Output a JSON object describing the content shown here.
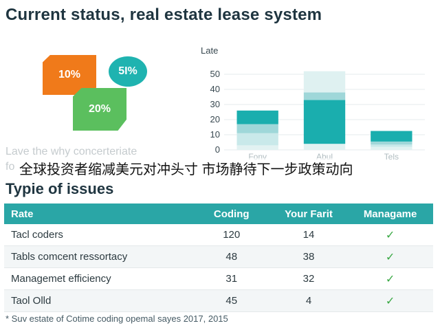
{
  "title": "Current status, real estate lease system",
  "shapes": [
    {
      "label": "10%",
      "color": "#f07a1a"
    },
    {
      "label": "5I%",
      "color": "#1fb3b0"
    },
    {
      "label": "20%",
      "color": "#5bbf5e"
    }
  ],
  "faded_text": "Lave the why concerteriate",
  "faded_text2": "fo",
  "overlay_caption": "全球投资者缩减美元对冲头寸 市场静待下一步政策动向",
  "chart_data": {
    "type": "bar",
    "stacked": true,
    "ylabel": "Late",
    "ylim": [
      0,
      60
    ],
    "yticks": [
      0,
      10,
      20,
      30,
      40,
      50
    ],
    "categories": [
      "Fonv",
      "Abul",
      "Tels"
    ],
    "series": [
      {
        "color": "#e2f2f2",
        "values": [
          3,
          4,
          2
        ]
      },
      {
        "color": "#c9e9ea",
        "values": [
          8,
          0,
          1.5
        ]
      },
      {
        "color": "#9fd7d9",
        "values": [
          6,
          0,
          2
        ]
      },
      {
        "color": "#1aaeae",
        "values": [
          9,
          29,
          7
        ]
      },
      {
        "color": "#9fd7d9",
        "values": [
          0,
          5,
          0
        ]
      },
      {
        "color": "#dff1f1",
        "values": [
          0,
          14,
          0
        ]
      }
    ],
    "grid": true
  },
  "issues": {
    "heading": "Typie of issues",
    "columns": [
      "Rate",
      "Coding",
      "Your Farit",
      "Managame"
    ],
    "rows": [
      {
        "name": "Tacl coders",
        "coding": "120",
        "your": "14",
        "check": "✓"
      },
      {
        "name": "Tabls comcent ressortacy",
        "coding": "48",
        "your": "38",
        "check": "✓"
      },
      {
        "name": "Managemet efficiency",
        "coding": "31",
        "your": "32",
        "check": "✓"
      },
      {
        "name": "Taol Olld",
        "coding": "45",
        "your": "4",
        "check": "✓"
      }
    ]
  },
  "footnote": "* Suv estate of Cotime coding opemal sayes 2017, 2015"
}
